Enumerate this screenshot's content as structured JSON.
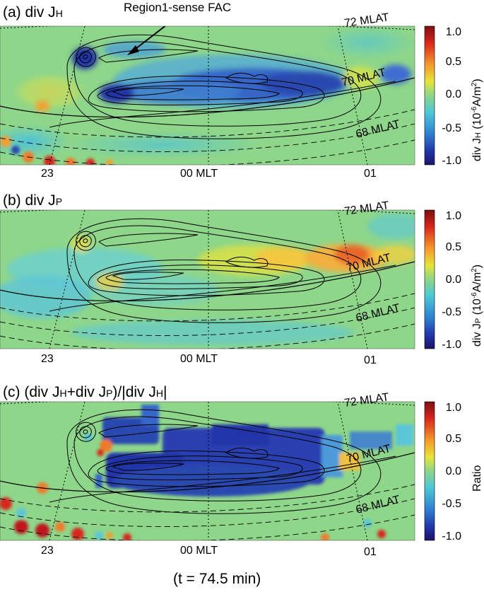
{
  "panels": [
    {
      "label": "(a) div J",
      "label_sub": "H",
      "cbar_title": "div J",
      "cbar_title_sub": "H",
      "cbar_unit": " (10",
      "cbar_exp": "-6",
      "cbar_unit2": "A/m",
      "cbar_exp2": "2",
      "cbar_unit3": ")",
      "annotation": "Region1-sense FAC",
      "mlat_labels": [
        "72 MLAT",
        "70 MLAT",
        "68 MLAT"
      ],
      "mlt_labels": [
        "23",
        "00 MLT",
        "01"
      ]
    },
    {
      "label": "(b) div J",
      "label_sub": "P",
      "cbar_title": "div J",
      "cbar_title_sub": "P",
      "cbar_unit": " (10",
      "cbar_exp": "-6",
      "cbar_unit2": "A/m",
      "cbar_exp2": "2",
      "cbar_unit3": ")",
      "mlat_labels": [
        "72 MLAT",
        "70 MLAT",
        "68 MLAT"
      ],
      "mlt_labels": [
        "23",
        "00 MLT",
        "01"
      ]
    },
    {
      "label_parts": [
        "(c) (div J",
        "H",
        "+div J",
        "P",
        ")/|div J",
        "H",
        "|"
      ],
      "cbar_title": "Ratio",
      "mlat_labels": [
        "72 MLAT",
        "70 MLAT",
        "68 MLAT"
      ],
      "mlt_labels": [
        "23",
        "00 MLT",
        "01"
      ]
    }
  ],
  "colorbar_ticks": [
    "1.0",
    "0.5",
    "0.0",
    "-0.5",
    "-1.0"
  ],
  "colors": {
    "background_field": "#7fd27f",
    "negative_strong": "#1a2fa0",
    "positive_strong": "#c81e1e",
    "contour": "#000000"
  },
  "caption": "(t = 74.5 min)"
}
